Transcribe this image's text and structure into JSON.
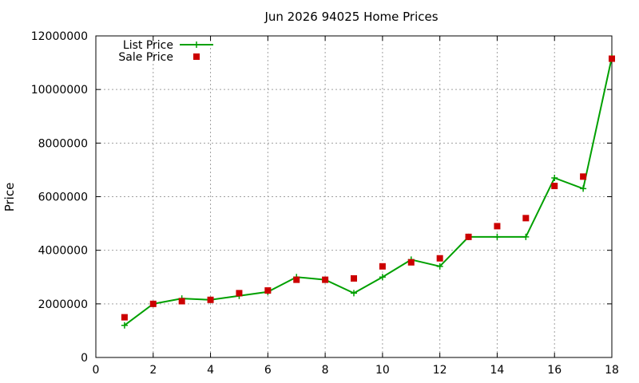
{
  "chart_data": {
    "type": "line",
    "title": "Jun 2026 94025 Home Prices",
    "xlabel": "",
    "ylabel": "Price",
    "xlim": [
      0,
      18
    ],
    "ylim": [
      0,
      12000000
    ],
    "x_ticks": [
      0,
      2,
      4,
      6,
      8,
      10,
      12,
      14,
      16,
      18
    ],
    "y_ticks": [
      0,
      2000000,
      4000000,
      6000000,
      8000000,
      10000000,
      12000000
    ],
    "grid": true,
    "legend_position": "top-left",
    "series": [
      {
        "name": "List Price",
        "style": "line+cross",
        "color": "#00a000",
        "x": [
          1,
          2,
          3,
          4,
          5,
          6,
          7,
          8,
          9,
          10,
          11,
          12,
          13,
          14,
          15,
          16,
          17,
          18
        ],
        "values": [
          1200000,
          2000000,
          2200000,
          2150000,
          2300000,
          2450000,
          3000000,
          2900000,
          2400000,
          3000000,
          3650000,
          3400000,
          4500000,
          4500000,
          4500000,
          6700000,
          6300000,
          11200000
        ]
      },
      {
        "name": "Sale Price",
        "style": "square",
        "color": "#cc0000",
        "x": [
          1,
          2,
          3,
          4,
          5,
          6,
          7,
          8,
          9,
          10,
          11,
          12,
          13,
          14,
          15,
          16,
          17,
          18
        ],
        "values": [
          1500000,
          2000000,
          2100000,
          2150000,
          2400000,
          2500000,
          2900000,
          2900000,
          2950000,
          3400000,
          3550000,
          3700000,
          4500000,
          4900000,
          5200000,
          6400000,
          6750000,
          11150000
        ]
      }
    ]
  }
}
